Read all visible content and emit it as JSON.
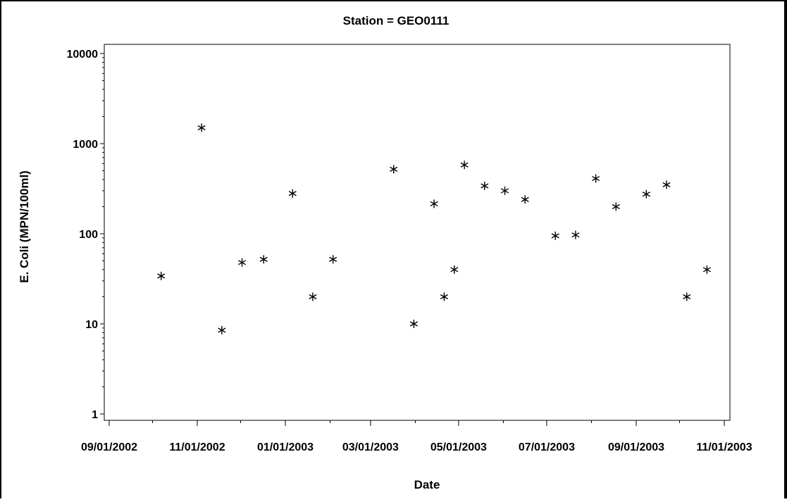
{
  "chart_data": {
    "type": "scatter",
    "title": "Station = GEO0111",
    "xlabel": "Date",
    "ylabel": "E. Coli  (MPN/100ml)",
    "y_scale": "log",
    "ylim": [
      1,
      10000
    ],
    "xlim": [
      "2002-09-01",
      "2003-11-01"
    ],
    "yticks": [
      1,
      10,
      100,
      1000,
      10000
    ],
    "ytick_labels": [
      "1",
      "10",
      "100",
      "1000",
      "10000"
    ],
    "xticks": [
      "2002-09-01",
      "2002-11-01",
      "2003-01-01",
      "2003-03-01",
      "2003-05-01",
      "2003-07-01",
      "2003-09-01",
      "2003-11-01"
    ],
    "xtick_labels": [
      "09/01/2002",
      "11/01/2002",
      "01/01/2003",
      "03/01/2003",
      "05/01/2003",
      "07/01/2003",
      "09/01/2003",
      "11/01/2003"
    ],
    "marker": "*",
    "grid": false,
    "points": [
      {
        "x": "2002-10-07",
        "y": 34
      },
      {
        "x": "2002-11-04",
        "y": 1500
      },
      {
        "x": "2002-11-18",
        "y": 8.5
      },
      {
        "x": "2002-12-02",
        "y": 48
      },
      {
        "x": "2002-12-17",
        "y": 52
      },
      {
        "x": "2003-01-06",
        "y": 280
      },
      {
        "x": "2003-01-20",
        "y": 20
      },
      {
        "x": "2003-02-03",
        "y": 52
      },
      {
        "x": "2003-03-17",
        "y": 520
      },
      {
        "x": "2003-03-31",
        "y": 10
      },
      {
        "x": "2003-04-14",
        "y": 215
      },
      {
        "x": "2003-04-21",
        "y": 20
      },
      {
        "x": "2003-04-28",
        "y": 40
      },
      {
        "x": "2003-05-05",
        "y": 580
      },
      {
        "x": "2003-05-19",
        "y": 340
      },
      {
        "x": "2003-06-02",
        "y": 300
      },
      {
        "x": "2003-06-16",
        "y": 240
      },
      {
        "x": "2003-07-07",
        "y": 95
      },
      {
        "x": "2003-07-21",
        "y": 97
      },
      {
        "x": "2003-08-04",
        "y": 410
      },
      {
        "x": "2003-08-18",
        "y": 200
      },
      {
        "x": "2003-09-08",
        "y": 275
      },
      {
        "x": "2003-09-22",
        "y": 350
      },
      {
        "x": "2003-10-06",
        "y": 20
      },
      {
        "x": "2003-10-20",
        "y": 40
      }
    ]
  }
}
